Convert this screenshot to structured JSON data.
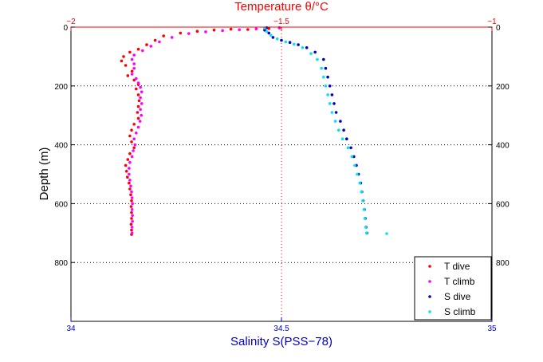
{
  "chart_data": {
    "type": "scatter",
    "title": "Temperature θ/°C",
    "xlabel": "Salinity S(PSS−78)",
    "ylabel": "Depth (m)",
    "x_bottom": {
      "range": [
        34,
        35
      ],
      "ticks": [
        34,
        34.5,
        35
      ],
      "tick_labels": [
        "34",
        "34.5",
        "35"
      ],
      "color": "#0000cc"
    },
    "x_top": {
      "range": [
        -2,
        -1
      ],
      "ticks": [
        -2,
        -1.5,
        -1
      ],
      "tick_labels": [
        "−2",
        "−1.5",
        "−1"
      ],
      "color": "#ff0000"
    },
    "y": {
      "range": [
        0,
        1000
      ],
      "reversed": true,
      "ticks": [
        0,
        200,
        400,
        600,
        800
      ],
      "tick_labels": [
        "0",
        "200",
        "400",
        "600",
        "800"
      ]
    },
    "grid": {
      "horizontal_dotted_at": [
        200,
        400,
        600,
        800
      ],
      "vertical_dotted_top_axis_at": -1.5,
      "vertical_dotted_bottom_axis_at": 34.5
    },
    "legend": {
      "placement": "bottom-right",
      "entries": [
        {
          "label": "T dive",
          "color": "#ff0000"
        },
        {
          "label": "T climb",
          "color": "#ff00ff"
        },
        {
          "label": "S dive",
          "color": "#0000cc"
        },
        {
          "label": "S climb",
          "color": "#00e5ee"
        }
      ]
    },
    "series": [
      {
        "name": "T dive",
        "axis": "top",
        "color": "#ff0000",
        "points": [
          [
            -1.505,
            2
          ],
          [
            -1.53,
            5
          ],
          [
            -1.58,
            8
          ],
          [
            -1.62,
            7
          ],
          [
            -1.66,
            10
          ],
          [
            -1.7,
            14
          ],
          [
            -1.74,
            20
          ],
          [
            -1.78,
            30
          ],
          [
            -1.8,
            45
          ],
          [
            -1.82,
            60
          ],
          [
            -1.84,
            75
          ],
          [
            -1.86,
            85
          ],
          [
            -1.875,
            100
          ],
          [
            -1.88,
            115
          ],
          [
            -1.87,
            130
          ],
          [
            -1.855,
            150
          ],
          [
            -1.865,
            165
          ],
          [
            -1.85,
            180
          ],
          [
            -1.84,
            195
          ],
          [
            -1.845,
            210
          ],
          [
            -1.84,
            230
          ],
          [
            -1.838,
            250
          ],
          [
            -1.84,
            270
          ],
          [
            -1.842,
            290
          ],
          [
            -1.84,
            310
          ],
          [
            -1.85,
            330
          ],
          [
            -1.856,
            350
          ],
          [
            -1.86,
            370
          ],
          [
            -1.856,
            390
          ],
          [
            -1.85,
            410
          ],
          [
            -1.86,
            430
          ],
          [
            -1.865,
            450
          ],
          [
            -1.87,
            470
          ],
          [
            -1.868,
            490
          ],
          [
            -1.866,
            510
          ],
          [
            -1.862,
            530
          ],
          [
            -1.86,
            550
          ],
          [
            -1.858,
            570
          ],
          [
            -1.856,
            590
          ],
          [
            -1.857,
            610
          ],
          [
            -1.856,
            630
          ],
          [
            -1.856,
            650
          ],
          [
            -1.857,
            670
          ],
          [
            -1.856,
            690
          ],
          [
            -1.856,
            705
          ]
        ]
      },
      {
        "name": "T climb",
        "axis": "top",
        "color": "#ff00ff",
        "points": [
          [
            -1.505,
            3
          ],
          [
            -1.56,
            6
          ],
          [
            -1.6,
            9
          ],
          [
            -1.64,
            12
          ],
          [
            -1.68,
            16
          ],
          [
            -1.72,
            22
          ],
          [
            -1.76,
            35
          ],
          [
            -1.79,
            50
          ],
          [
            -1.81,
            65
          ],
          [
            -1.83,
            80
          ],
          [
            -1.85,
            95
          ],
          [
            -1.855,
            110
          ],
          [
            -1.85,
            125
          ],
          [
            -1.85,
            140
          ],
          [
            -1.855,
            160
          ],
          [
            -1.845,
            175
          ],
          [
            -1.84,
            190
          ],
          [
            -1.835,
            205
          ],
          [
            -1.832,
            220
          ],
          [
            -1.835,
            240
          ],
          [
            -1.832,
            260
          ],
          [
            -1.835,
            280
          ],
          [
            -1.833,
            300
          ],
          [
            -1.836,
            320
          ],
          [
            -1.84,
            340
          ],
          [
            -1.845,
            360
          ],
          [
            -1.85,
            380
          ],
          [
            -1.848,
            400
          ],
          [
            -1.852,
            420
          ],
          [
            -1.855,
            440
          ],
          [
            -1.86,
            460
          ],
          [
            -1.862,
            480
          ],
          [
            -1.862,
            500
          ],
          [
            -1.86,
            520
          ],
          [
            -1.858,
            540
          ],
          [
            -1.856,
            560
          ],
          [
            -1.855,
            580
          ],
          [
            -1.854,
            600
          ],
          [
            -1.855,
            620
          ],
          [
            -1.854,
            640
          ],
          [
            -1.854,
            660
          ],
          [
            -1.855,
            680
          ],
          [
            -1.855,
            700
          ]
        ]
      },
      {
        "name": "S dive",
        "axis": "bottom",
        "color": "#0000cc",
        "points": [
          [
            34.465,
            2
          ],
          [
            34.46,
            10
          ],
          [
            34.47,
            20
          ],
          [
            34.48,
            35
          ],
          [
            34.5,
            45
          ],
          [
            34.52,
            52
          ],
          [
            34.54,
            60
          ],
          [
            34.56,
            70
          ],
          [
            34.58,
            85
          ],
          [
            34.6,
            110
          ],
          [
            34.605,
            140
          ],
          [
            34.61,
            170
          ],
          [
            34.615,
            200
          ],
          [
            34.62,
            230
          ],
          [
            34.625,
            260
          ],
          [
            34.63,
            290
          ],
          [
            34.64,
            320
          ],
          [
            34.648,
            350
          ],
          [
            34.655,
            380
          ],
          [
            34.665,
            410
          ],
          [
            34.672,
            440
          ],
          [
            34.678,
            470
          ],
          [
            34.683,
            500
          ],
          [
            34.688,
            530
          ],
          [
            34.691,
            560
          ],
          [
            34.694,
            590
          ],
          [
            34.697,
            620
          ],
          [
            34.699,
            650
          ],
          [
            34.701,
            680
          ],
          [
            34.703,
            700
          ]
        ]
      },
      {
        "name": "S climb",
        "axis": "bottom",
        "color": "#00e5ee",
        "points": [
          [
            34.46,
            3
          ],
          [
            34.465,
            15
          ],
          [
            34.475,
            28
          ],
          [
            34.49,
            40
          ],
          [
            34.51,
            50
          ],
          [
            34.53,
            58
          ],
          [
            34.55,
            70
          ],
          [
            34.57,
            90
          ],
          [
            34.585,
            110
          ],
          [
            34.595,
            140
          ],
          [
            34.6,
            170
          ],
          [
            34.605,
            200
          ],
          [
            34.61,
            230
          ],
          [
            34.615,
            260
          ],
          [
            34.62,
            290
          ],
          [
            34.628,
            320
          ],
          [
            34.636,
            350
          ],
          [
            34.645,
            380
          ],
          [
            34.658,
            410
          ],
          [
            34.667,
            440
          ],
          [
            34.674,
            470
          ],
          [
            34.68,
            500
          ],
          [
            34.686,
            530
          ],
          [
            34.69,
            560
          ],
          [
            34.693,
            590
          ],
          [
            34.696,
            620
          ],
          [
            34.698,
            650
          ],
          [
            34.7,
            680
          ],
          [
            34.702,
            700
          ],
          [
            34.75,
            702
          ]
        ]
      }
    ]
  }
}
